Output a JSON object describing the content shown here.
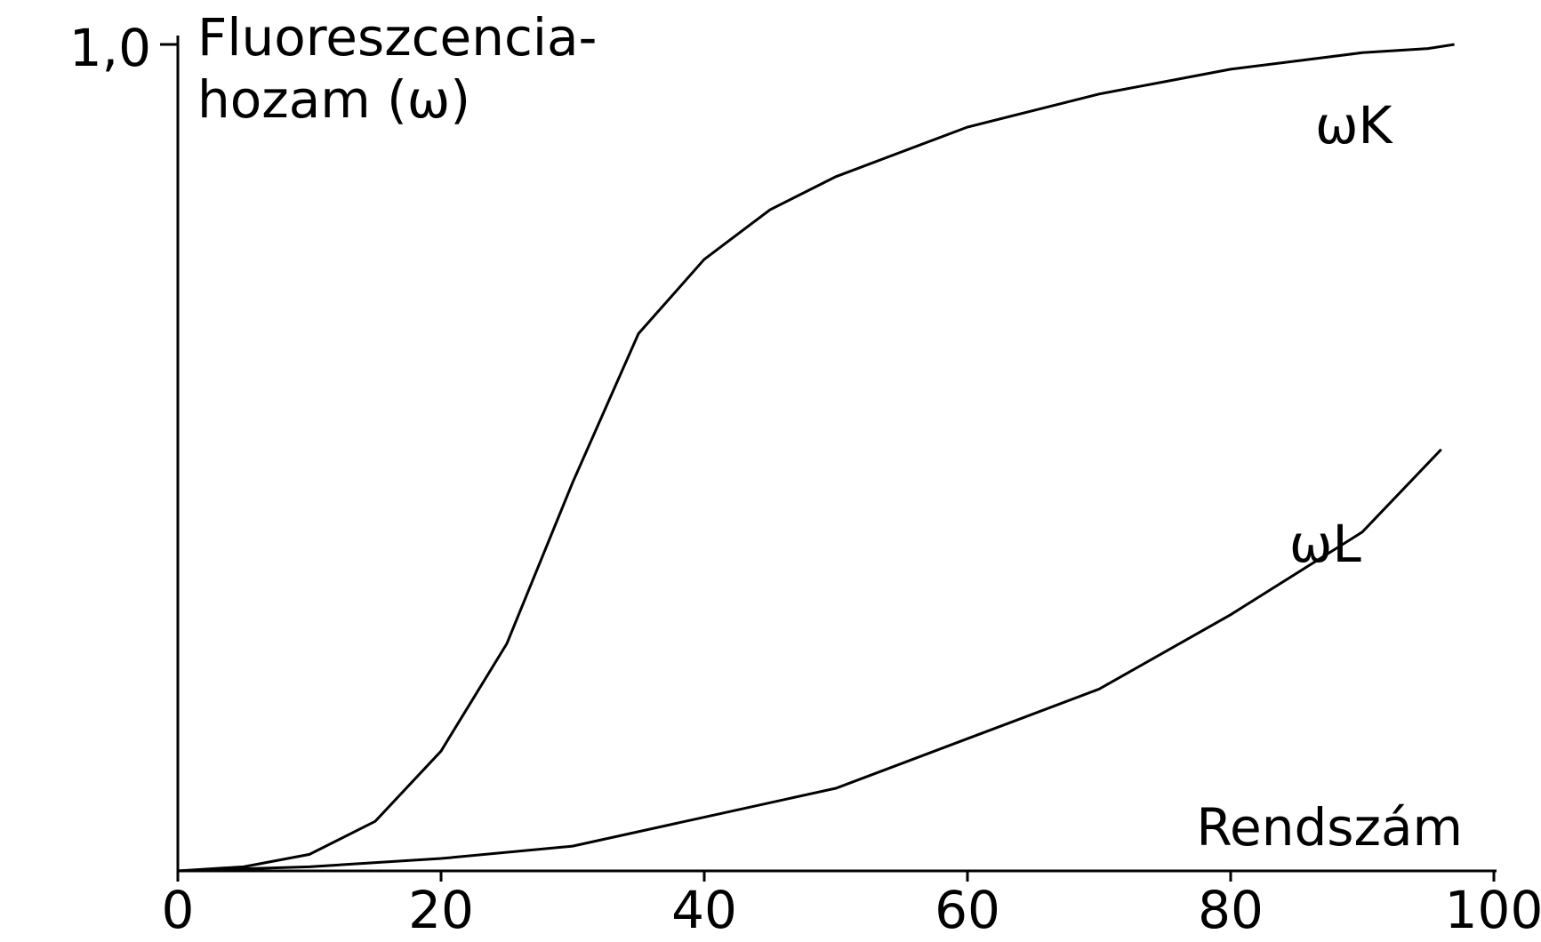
{
  "chart_data": {
    "type": "line",
    "ylabel": [
      "Fluoreszcencia-",
      "hozam (ω)"
    ],
    "xlabel": "Rendszám",
    "xlim": [
      0,
      100
    ],
    "xticks": [
      0,
      20,
      40,
      60,
      80,
      100
    ],
    "ylim": [
      0,
      1
    ],
    "yticks": [
      {
        "value": 1,
        "label": "1,0"
      }
    ],
    "series": [
      {
        "name": "ωK",
        "color": "#000000",
        "x": [
          0,
          5,
          10,
          15,
          20,
          25,
          30,
          35,
          40,
          45,
          50,
          55,
          60,
          65,
          70,
          75,
          80,
          85,
          90,
          95,
          97
        ],
        "values": [
          0,
          0.005,
          0.02,
          0.06,
          0.145,
          0.275,
          0.47,
          0.65,
          0.74,
          0.8,
          0.84,
          0.87,
          0.9,
          0.92,
          0.94,
          0.955,
          0.97,
          0.98,
          0.99,
          0.995,
          1.0
        ]
      },
      {
        "name": "ωL",
        "color": "#000000",
        "x": [
          0,
          10,
          20,
          30,
          40,
          50,
          60,
          70,
          80,
          90,
          96
        ],
        "values": [
          0,
          0.005,
          0.015,
          0.03,
          0.065,
          0.1,
          0.16,
          0.22,
          0.31,
          0.41,
          0.51
        ]
      }
    ]
  }
}
